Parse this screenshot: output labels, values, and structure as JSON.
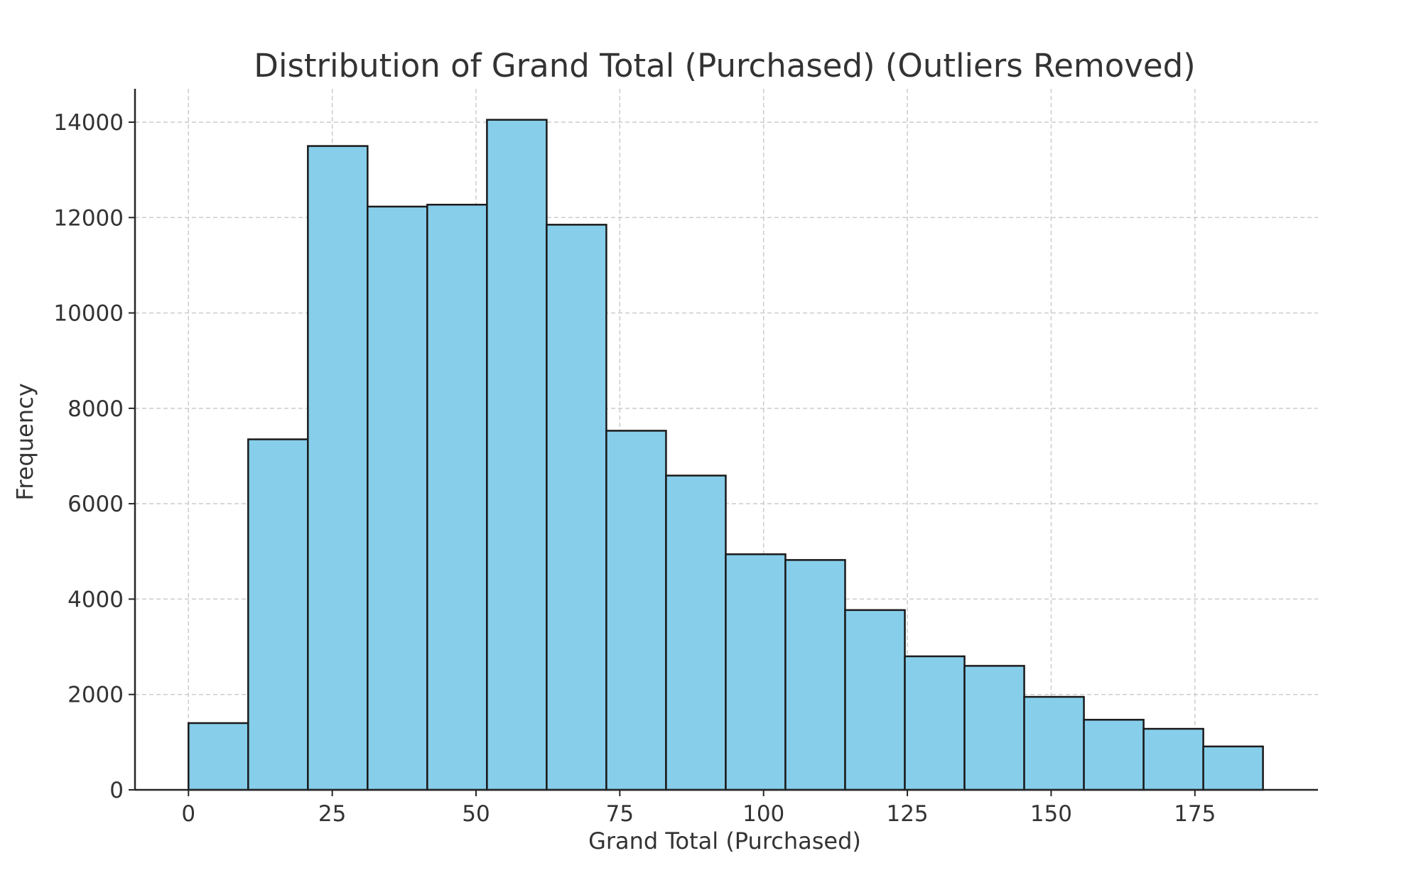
{
  "chart_data": {
    "type": "bar",
    "title": "Distribution of Grand Total (Purchased) (Outliers Removed)",
    "xlabel": "Grand Total (Purchased)",
    "ylabel": "Frequency",
    "grid": true,
    "xlim": [
      -9.3,
      196.4
    ],
    "ylim": [
      0,
      14700
    ],
    "x_ticks": [
      0,
      25,
      50,
      75,
      100,
      125,
      150,
      175
    ],
    "y_ticks": [
      0,
      2000,
      4000,
      6000,
      8000,
      10000,
      12000,
      14000
    ],
    "bin_edges": [
      0,
      10.38,
      20.76,
      31.14,
      41.52,
      51.9,
      62.28,
      72.66,
      83.04,
      93.42,
      103.8,
      114.18,
      124.56,
      134.94,
      145.32,
      155.7,
      166.08,
      176.46,
      186.84
    ],
    "values": [
      1400,
      7350,
      13500,
      12230,
      12270,
      14050,
      11850,
      7530,
      6590,
      4940,
      4820,
      3770,
      2800,
      2600,
      1950,
      1470,
      1280,
      910
    ],
    "colors": {
      "bar_fill": "#87ceeb",
      "bar_edge": "#1a1a1a",
      "grid": "#cccccc"
    }
  }
}
